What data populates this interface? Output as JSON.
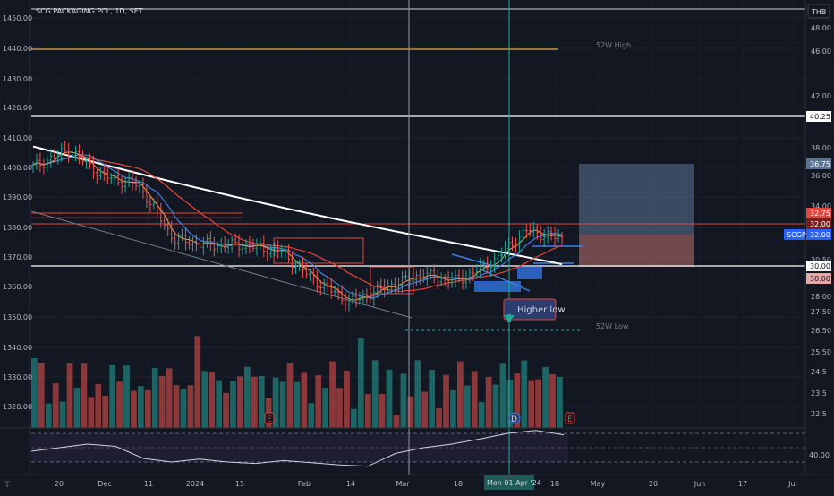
{
  "header": {
    "title": "SCG PACKAGING PCL, 1D, SET"
  },
  "currency_badge": "THB",
  "colors": {
    "background": "#131722",
    "up": "#26a69a",
    "down": "#ef5350",
    "ma_white": "#ffffff",
    "ma_red": "#e5453b",
    "ma_blue": "#3f7fe0",
    "ma_orange": "#f0a04b",
    "target_zone": "#5d7396",
    "stop_zone": "#b06a6a",
    "rsi_line": "#d1d4dc"
  },
  "chart_data": [
    {
      "type": "candlestick",
      "title": "SCG PACKAGING PCL, 1D, SET",
      "left_axis": {
        "ylim": [
          1312,
          1460
        ],
        "ticks": [
          "1450.00",
          "1440.00",
          "1430.00",
          "1420.00",
          "1410.00",
          "1400.00",
          "1390.00",
          "1380.00",
          "1370.00",
          "1360.00",
          "1350.00",
          "1340.00",
          "1330.00",
          "1320.00"
        ]
      },
      "right_axis": {
        "ticks": [
          "48.00",
          "46.00",
          "42.00",
          "40.00",
          "38.00",
          "36.00",
          "34.00",
          "30.50",
          "28.00",
          "27.50",
          "26.50",
          "25.50",
          "24.5",
          "23.5",
          "22.5"
        ]
      },
      "x_axis": {
        "ticks": [
          "20",
          "Dec",
          "11",
          "2024",
          "15",
          "Feb",
          "14",
          "Mar",
          "18",
          "Apr",
          "18",
          "May",
          "20",
          "Jun",
          "17",
          "Jul"
        ],
        "crosshair_label": "Mon 01 Apr '24"
      },
      "ohlc_summary": [
        {
          "date": "2023-11-20",
          "close": 1400
        },
        {
          "date": "2023-12-01",
          "close": 1406
        },
        {
          "date": "2023-12-11",
          "close": 1397
        },
        {
          "date": "2024-01-02",
          "close": 1394
        },
        {
          "date": "2024-01-15",
          "close": 1376
        },
        {
          "date": "2024-01-25",
          "close": 1374
        },
        {
          "date": "2024-02-01",
          "close": 1374
        },
        {
          "date": "2024-02-14",
          "close": 1372
        },
        {
          "date": "2024-02-22",
          "close": 1362
        },
        {
          "date": "2024-03-04",
          "close": 1355
        },
        {
          "date": "2024-03-11",
          "close": 1360
        },
        {
          "date": "2024-03-18",
          "close": 1364
        },
        {
          "date": "2024-04-01",
          "close": 1362
        },
        {
          "date": "2024-04-08",
          "close": 1368
        },
        {
          "date": "2024-04-12",
          "close": 1379
        },
        {
          "date": "2024-04-18",
          "close": 1376
        }
      ],
      "horizontal_levels": [
        {
          "price_label": "40.25",
          "kind": "resistance"
        },
        {
          "price_label": "32.75",
          "kind": "stop"
        },
        {
          "price_label": "32.00",
          "kind": "last"
        },
        {
          "price_label": "30.00",
          "kind": "support"
        },
        {
          "price_label": "36.75",
          "kind": "target"
        }
      ],
      "price_tags": [
        {
          "label": "40.25",
          "style": "white"
        },
        {
          "label": "36.75",
          "style": "blue"
        },
        {
          "label": "32.75",
          "style": "red"
        },
        {
          "label": "32.00",
          "style": "red-dark"
        },
        {
          "symbol": "SCGP",
          "label": "32.00",
          "style": "blue"
        },
        {
          "label": "30.00",
          "style": "white"
        },
        {
          "label": "30.00",
          "style": "red-light"
        }
      ],
      "annotations": {
        "high_52w": "52W High",
        "low_52w": "52W Low",
        "callout": "Higher low",
        "event_e": "E",
        "event_d": "D"
      },
      "volume": {
        "up_color": "#26a69a",
        "down_color": "#ef5350",
        "unit": "relative"
      },
      "rsi": {
        "label": "40.00",
        "bands": [
          30,
          70
        ],
        "values": [
          45,
          50,
          55,
          52,
          35,
          30,
          34,
          30,
          28,
          32,
          29,
          26,
          24,
          42,
          50,
          55,
          62,
          70,
          74,
          68
        ]
      }
    }
  ]
}
